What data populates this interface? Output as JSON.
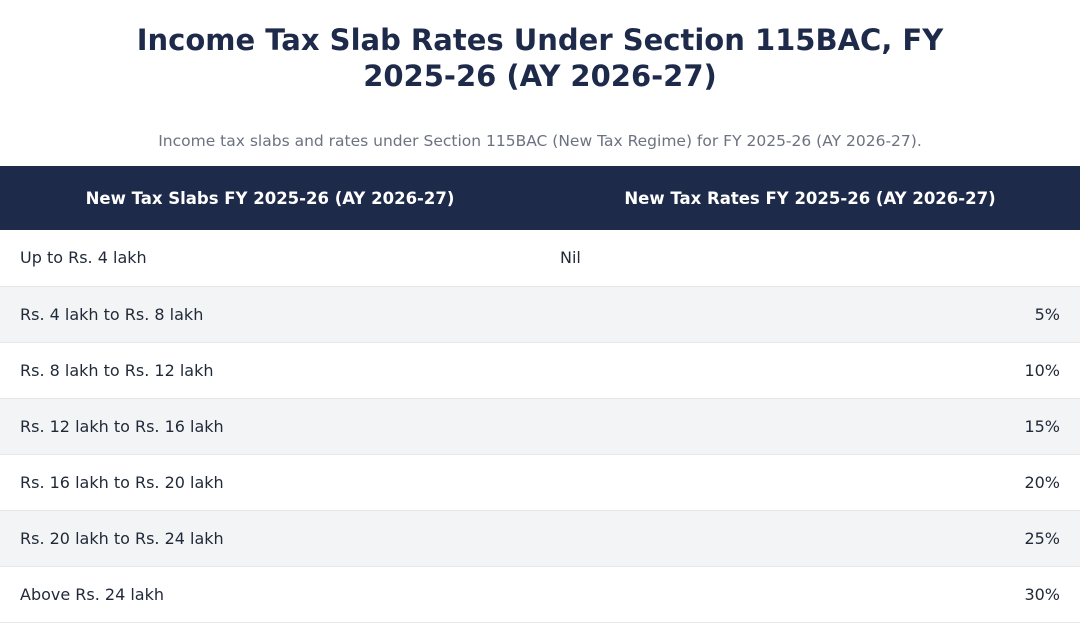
{
  "title": "Income Tax Slab Rates Under Section 115BAC, FY 2025-26 (AY 2026-27)",
  "subtitle": "Income tax slabs and rates under Section 115BAC (New Tax Regime) for FY 2025-26 (AY 2026-27).",
  "table": {
    "headers": {
      "slab": "New Tax Slabs FY 2025-26 (AY 2026-27)",
      "rate": "New Tax Rates FY 2025-26 (AY 2026-27)"
    },
    "rows": [
      {
        "slab": "Up to Rs. 4 lakh",
        "rate": "Nil"
      },
      {
        "slab": "Rs. 4 lakh to Rs. 8 lakh",
        "rate": "5%"
      },
      {
        "slab": "Rs. 8 lakh to Rs. 12 lakh",
        "rate": "10%"
      },
      {
        "slab": "Rs. 12 lakh to Rs. 16 lakh",
        "rate": "15%"
      },
      {
        "slab": "Rs. 16 lakh to Rs. 20 lakh",
        "rate": "20%"
      },
      {
        "slab": "Rs. 20 lakh to Rs. 24 lakh",
        "rate": "25%"
      },
      {
        "slab": "Above Rs. 24 lakh",
        "rate": "30%"
      }
    ]
  },
  "colors": {
    "header_bg": "#1e2a4a",
    "alt_row_bg": "#f3f4f6"
  }
}
